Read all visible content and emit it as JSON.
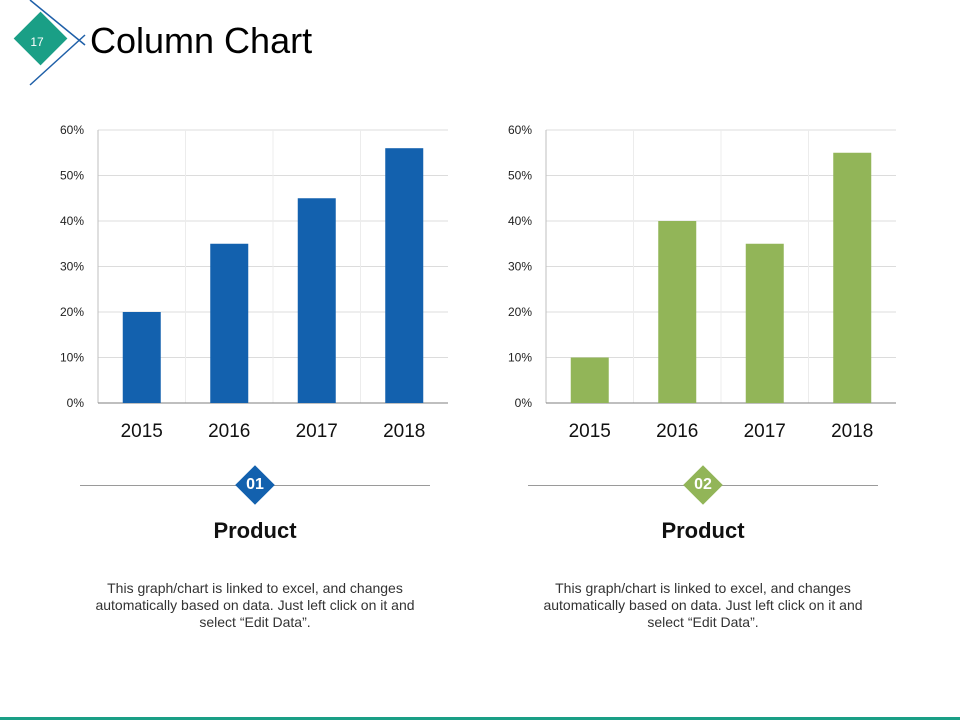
{
  "slide": {
    "number": "17",
    "title": "Column Chart",
    "badge_color": "#1a9f86",
    "line_color": "#1e5fa8"
  },
  "chart_data": [
    {
      "type": "bar",
      "categories": [
        "2015",
        "2016",
        "2017",
        "2018"
      ],
      "values": [
        20,
        35,
        45,
        56
      ],
      "y_ticks": [
        "0%",
        "10%",
        "20%",
        "30%",
        "40%",
        "50%",
        "60%"
      ],
      "ylim": [
        0,
        60
      ],
      "unit": "%",
      "color": "#1361ae",
      "grid": true,
      "title": "",
      "xlabel": "",
      "ylabel": ""
    },
    {
      "type": "bar",
      "categories": [
        "2015",
        "2016",
        "2017",
        "2018"
      ],
      "values": [
        10,
        40,
        35,
        55
      ],
      "y_ticks": [
        "0%",
        "10%",
        "20%",
        "30%",
        "40%",
        "50%",
        "60%"
      ],
      "ylim": [
        0,
        60
      ],
      "unit": "%",
      "color": "#92b558",
      "grid": true,
      "title": "",
      "xlabel": "",
      "ylabel": ""
    }
  ],
  "products": [
    {
      "number": "01",
      "color": "#1361ae",
      "title": "Product",
      "description": "This graph/chart is linked to excel, and changes automatically based on data. Just left click on it and select “Edit Data”."
    },
    {
      "number": "02",
      "color": "#92b558",
      "title": "Product",
      "description": "This graph/chart is linked to excel, and changes automatically based on data. Just left click on it and select “Edit Data”."
    }
  ]
}
